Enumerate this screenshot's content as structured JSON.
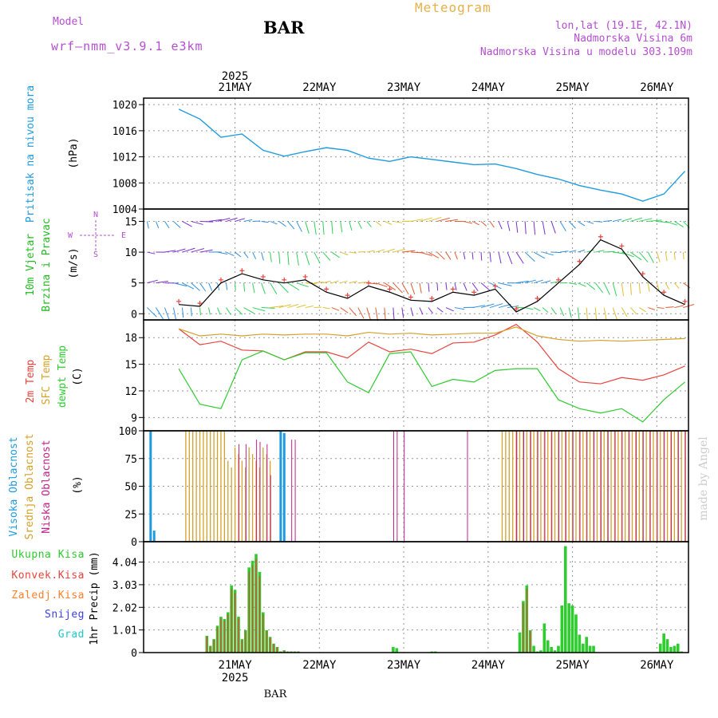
{
  "header": {
    "model_label": "Model",
    "model_name": "wrf–nmm_v3.9.1 e3km",
    "station": "BAR",
    "app_title": "Meteogram",
    "coords": "lon,lat (19.1E, 42.1N)",
    "elevation": "Nadmorska Visina 6m",
    "model_elevation": "Nadmorska Visina u modelu 303.109m",
    "footer_station": "BAR",
    "credit": "made by Angel",
    "year": "2025"
  },
  "colors": {
    "pressure": "#1e9be0",
    "wind_title": "#22bb22",
    "temp2m": "#e8433c",
    "sfc": "#d4a12a",
    "dew": "#2ecc2e",
    "high_cloud": "#1e9be0",
    "mid_cloud": "#d4a12a",
    "low_cloud": "#c0208a",
    "total_precip": "#2ecc2e",
    "convective": "#e8433c",
    "freezing": "#ff7f2a",
    "snow": "#4040e0",
    "hail": "#20c8c8",
    "header": "#b44fd0",
    "meteogram": "#e6b04a"
  },
  "chart_data": [
    {
      "type": "line",
      "panel": "pressure",
      "title": "Pritisak na nivou mora",
      "ylabel": "(hPa)",
      "ylim": [
        1004,
        1021
      ],
      "yticks": [
        "1020",
        "1016",
        "1012",
        "1008",
        "1004"
      ],
      "xlabels_top": [
        "21MAY",
        "22MAY",
        "23MAY",
        "24MAY",
        "25MAY",
        "26MAY"
      ],
      "x_hours": [
        0,
        6,
        12,
        18,
        24,
        30,
        36,
        42,
        48,
        54,
        60,
        66,
        72,
        78,
        84,
        90,
        96,
        102,
        108,
        114,
        120,
        126,
        132,
        138,
        144
      ],
      "values": [
        1019.3,
        1017.8,
        1015.0,
        1015.5,
        1013.0,
        1012.1,
        1012.8,
        1013.4,
        1013.0,
        1011.8,
        1011.3,
        1012.0,
        1011.6,
        1011.2,
        1010.8,
        1010.9,
        1010.2,
        1009.3,
        1008.6,
        1007.6,
        1006.9,
        1006.3,
        1005.2,
        1006.3,
        1009.8
      ]
    },
    {
      "type": "line",
      "panel": "wind",
      "title_line1": "10m Vjetar",
      "title_line2": "Brzina i Pravac",
      "ylabel": "(m/s)",
      "compass": [
        "N",
        "E",
        "S",
        "W"
      ],
      "ylim": [
        -1,
        17
      ],
      "yticks": [
        "15",
        "10",
        "5",
        "0"
      ],
      "series": [
        {
          "name": "Brzina",
          "x_hours": [
            0,
            6,
            12,
            18,
            24,
            30,
            36,
            42,
            48,
            54,
            60,
            66,
            72,
            78,
            84,
            90,
            96,
            102,
            108,
            114,
            120,
            126,
            132,
            138,
            144
          ],
          "values": [
            1.5,
            1.2,
            5,
            6.5,
            5.5,
            5,
            5.5,
            3.5,
            2.5,
            4.5,
            3.5,
            2.2,
            2,
            3.5,
            3,
            4,
            0.3,
            2,
            5,
            8,
            12,
            10.5,
            6,
            3,
            1.5
          ]
        }
      ]
    },
    {
      "type": "line",
      "panel": "temperature",
      "title_2m": "2m Temp",
      "title_sfc": "SFC Temp",
      "title_dew": "dewpt Temp",
      "ylabel": "(C)",
      "ylim": [
        7.5,
        20
      ],
      "yticks": [
        "18",
        "15",
        "12",
        "9"
      ],
      "series": [
        {
          "name": "2m Temp",
          "x_hours": [
            0,
            6,
            12,
            18,
            24,
            30,
            36,
            42,
            48,
            54,
            60,
            66,
            72,
            78,
            84,
            90,
            96,
            102,
            108,
            114,
            120,
            126,
            132,
            138,
            144
          ],
          "values": [
            19,
            17.2,
            17.6,
            16.6,
            16.5,
            15.5,
            16.4,
            16.4,
            15.7,
            17.5,
            16.4,
            16.7,
            16.2,
            17.4,
            17.5,
            18.3,
            19.5,
            17.5,
            14.5,
            13,
            12.8,
            13.5,
            13.2,
            13.8,
            14.8
          ]
        },
        {
          "name": "SFC Temp",
          "x_hours": [
            0,
            6,
            12,
            18,
            24,
            30,
            36,
            42,
            48,
            54,
            60,
            66,
            72,
            78,
            84,
            90,
            96,
            102,
            108,
            114,
            120,
            126,
            132,
            138,
            144
          ],
          "values": [
            19,
            18.2,
            18.4,
            18.2,
            18.4,
            18.3,
            18.4,
            18.4,
            18.2,
            18.6,
            18.4,
            18.5,
            18.3,
            18.4,
            18.5,
            18.5,
            19.2,
            18.2,
            17.8,
            17.6,
            17.7,
            17.6,
            17.7,
            17.8,
            17.9
          ]
        },
        {
          "name": "dewpt Temp",
          "x_hours": [
            0,
            6,
            12,
            18,
            24,
            30,
            36,
            42,
            48,
            54,
            60,
            66,
            72,
            78,
            84,
            90,
            96,
            102,
            108,
            114,
            120,
            126,
            132,
            138,
            144
          ],
          "values": [
            14.5,
            10.5,
            10,
            15.5,
            16.5,
            15.5,
            16.3,
            16.3,
            13,
            11.8,
            16.2,
            16.4,
            12.5,
            13.3,
            13,
            14.3,
            14.5,
            14.5,
            11,
            10,
            9.5,
            10,
            8.5,
            11,
            13
          ]
        }
      ]
    },
    {
      "type": "bar",
      "panel": "cloud",
      "title_high": "Visoka Oblacnost",
      "title_mid": "Srednja Oblacnost",
      "title_low": "Niska Oblacnost",
      "ylabel": "(%)",
      "ylim": [
        0,
        100
      ],
      "yticks": [
        "100",
        "75",
        "50",
        "25",
        "0"
      ]
    },
    {
      "type": "bar",
      "panel": "precip",
      "legend": [
        "Ukupna Kisa",
        "Konvek.Kisa",
        "Zaledj.Kisa",
        "Snijeg",
        "Grad"
      ],
      "ylabel": "1hr Precip (mm)",
      "ylim": [
        0,
        4.95
      ],
      "yticks": [
        "4.04",
        "3.03",
        "2.02",
        "1.01",
        "0"
      ],
      "xlabels_bottom": [
        "21MAY",
        "22MAY",
        "23MAY",
        "24MAY",
        "25MAY",
        "26MAY"
      ],
      "x_hours": [
        8,
        9,
        10,
        11,
        12,
        13,
        14,
        15,
        16,
        17,
        18,
        19,
        20,
        21,
        22,
        23,
        24,
        25,
        26,
        27,
        28,
        29,
        30,
        31,
        32,
        33,
        34,
        61,
        62,
        72,
        73,
        97,
        98,
        99,
        100,
        101,
        102,
        103,
        104,
        105,
        106,
        107,
        108,
        109,
        110,
        111,
        112,
        113,
        114,
        115,
        116,
        117,
        118,
        137,
        138,
        139,
        140,
        141,
        142,
        143
      ],
      "values": [
        0.75,
        0.3,
        0.6,
        1.2,
        1.6,
        1.5,
        1.8,
        3.0,
        2.8,
        1.6,
        0.6,
        1.0,
        3.8,
        4.1,
        4.4,
        3.6,
        1.8,
        1.0,
        0.7,
        0.4,
        0.25,
        0.05,
        0.1,
        0.05,
        0.05,
        0.05,
        0.05,
        0.25,
        0.2,
        0.05,
        0.05,
        0.9,
        2.3,
        3.0,
        1.0,
        0.3,
        0.05,
        0.1,
        1.3,
        0.55,
        0.25,
        0.1,
        0.3,
        2.1,
        4.75,
        2.2,
        2.1,
        1.7,
        0.8,
        0.4,
        0.7,
        0.3,
        0.3,
        0.4,
        0.85,
        0.6,
        0.25,
        0.3,
        0.4,
        0.05
      ]
    }
  ]
}
